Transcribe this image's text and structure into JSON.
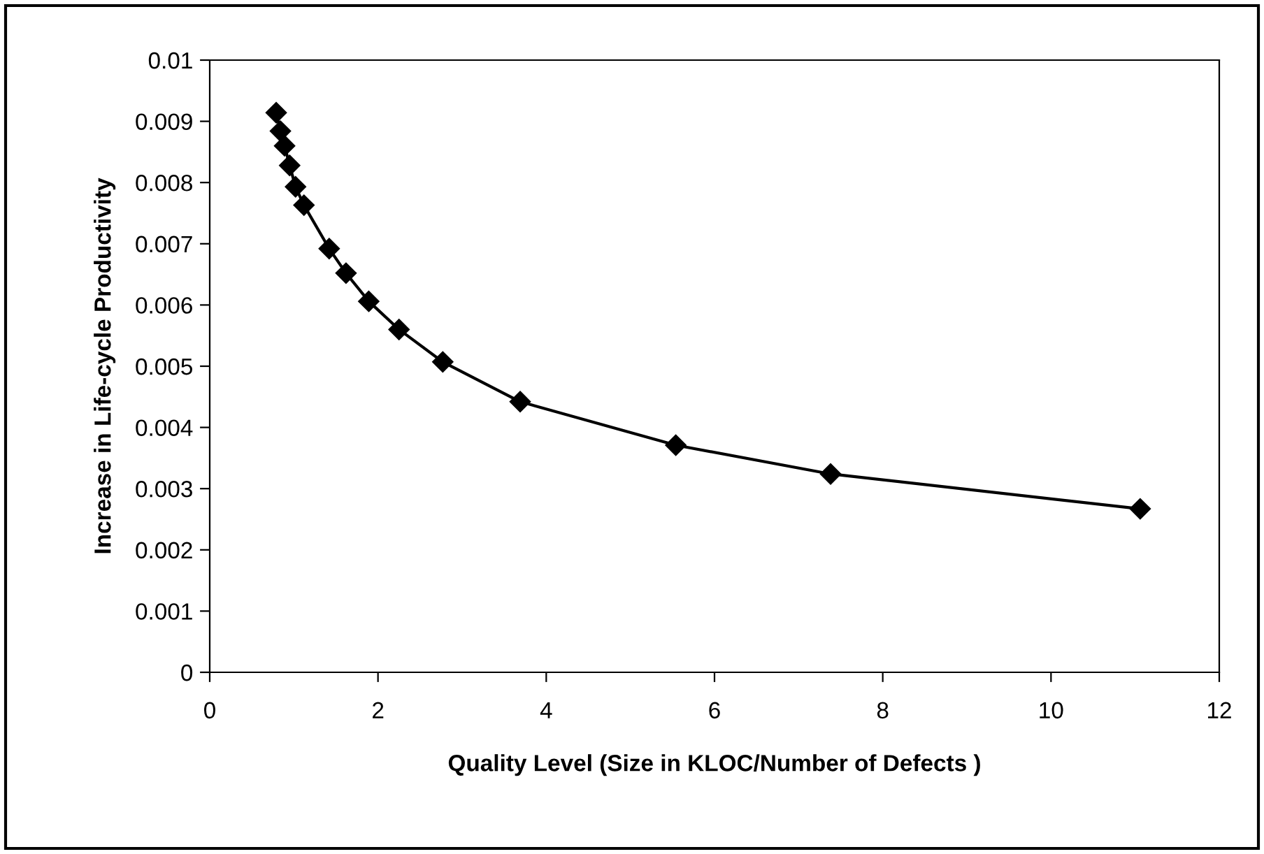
{
  "chart_data": {
    "type": "line",
    "xlabel": "Quality Level (Size in KLOC/Number of Defects )",
    "ylabel": "Increase in Life-cycle Productivity",
    "series": [
      {
        "color": "#000000",
        "x": [
          0.79,
          0.84,
          0.89,
          0.95,
          1.02,
          1.12,
          1.42,
          1.62,
          1.89,
          2.25,
          2.77,
          3.69,
          5.54,
          7.38,
          11.06
        ],
        "values": [
          0.00914,
          0.00884,
          0.0086,
          0.00828,
          0.00793,
          0.00763,
          0.00692,
          0.00652,
          0.00606,
          0.0056,
          0.00507,
          0.00442,
          0.00371,
          0.00324,
          0.00267
        ]
      }
    ],
    "marker": "diamond",
    "line_style": "solid",
    "grid": false,
    "legend": false,
    "xlim": [
      0,
      12
    ],
    "xticks": [
      0,
      2,
      4,
      6,
      8,
      10,
      12
    ],
    "ylim": [
      0,
      0.01
    ],
    "yticks": [
      0,
      0.001,
      0.002,
      0.003,
      0.004,
      0.005,
      0.006,
      0.007,
      0.008,
      0.009,
      0.01
    ]
  }
}
